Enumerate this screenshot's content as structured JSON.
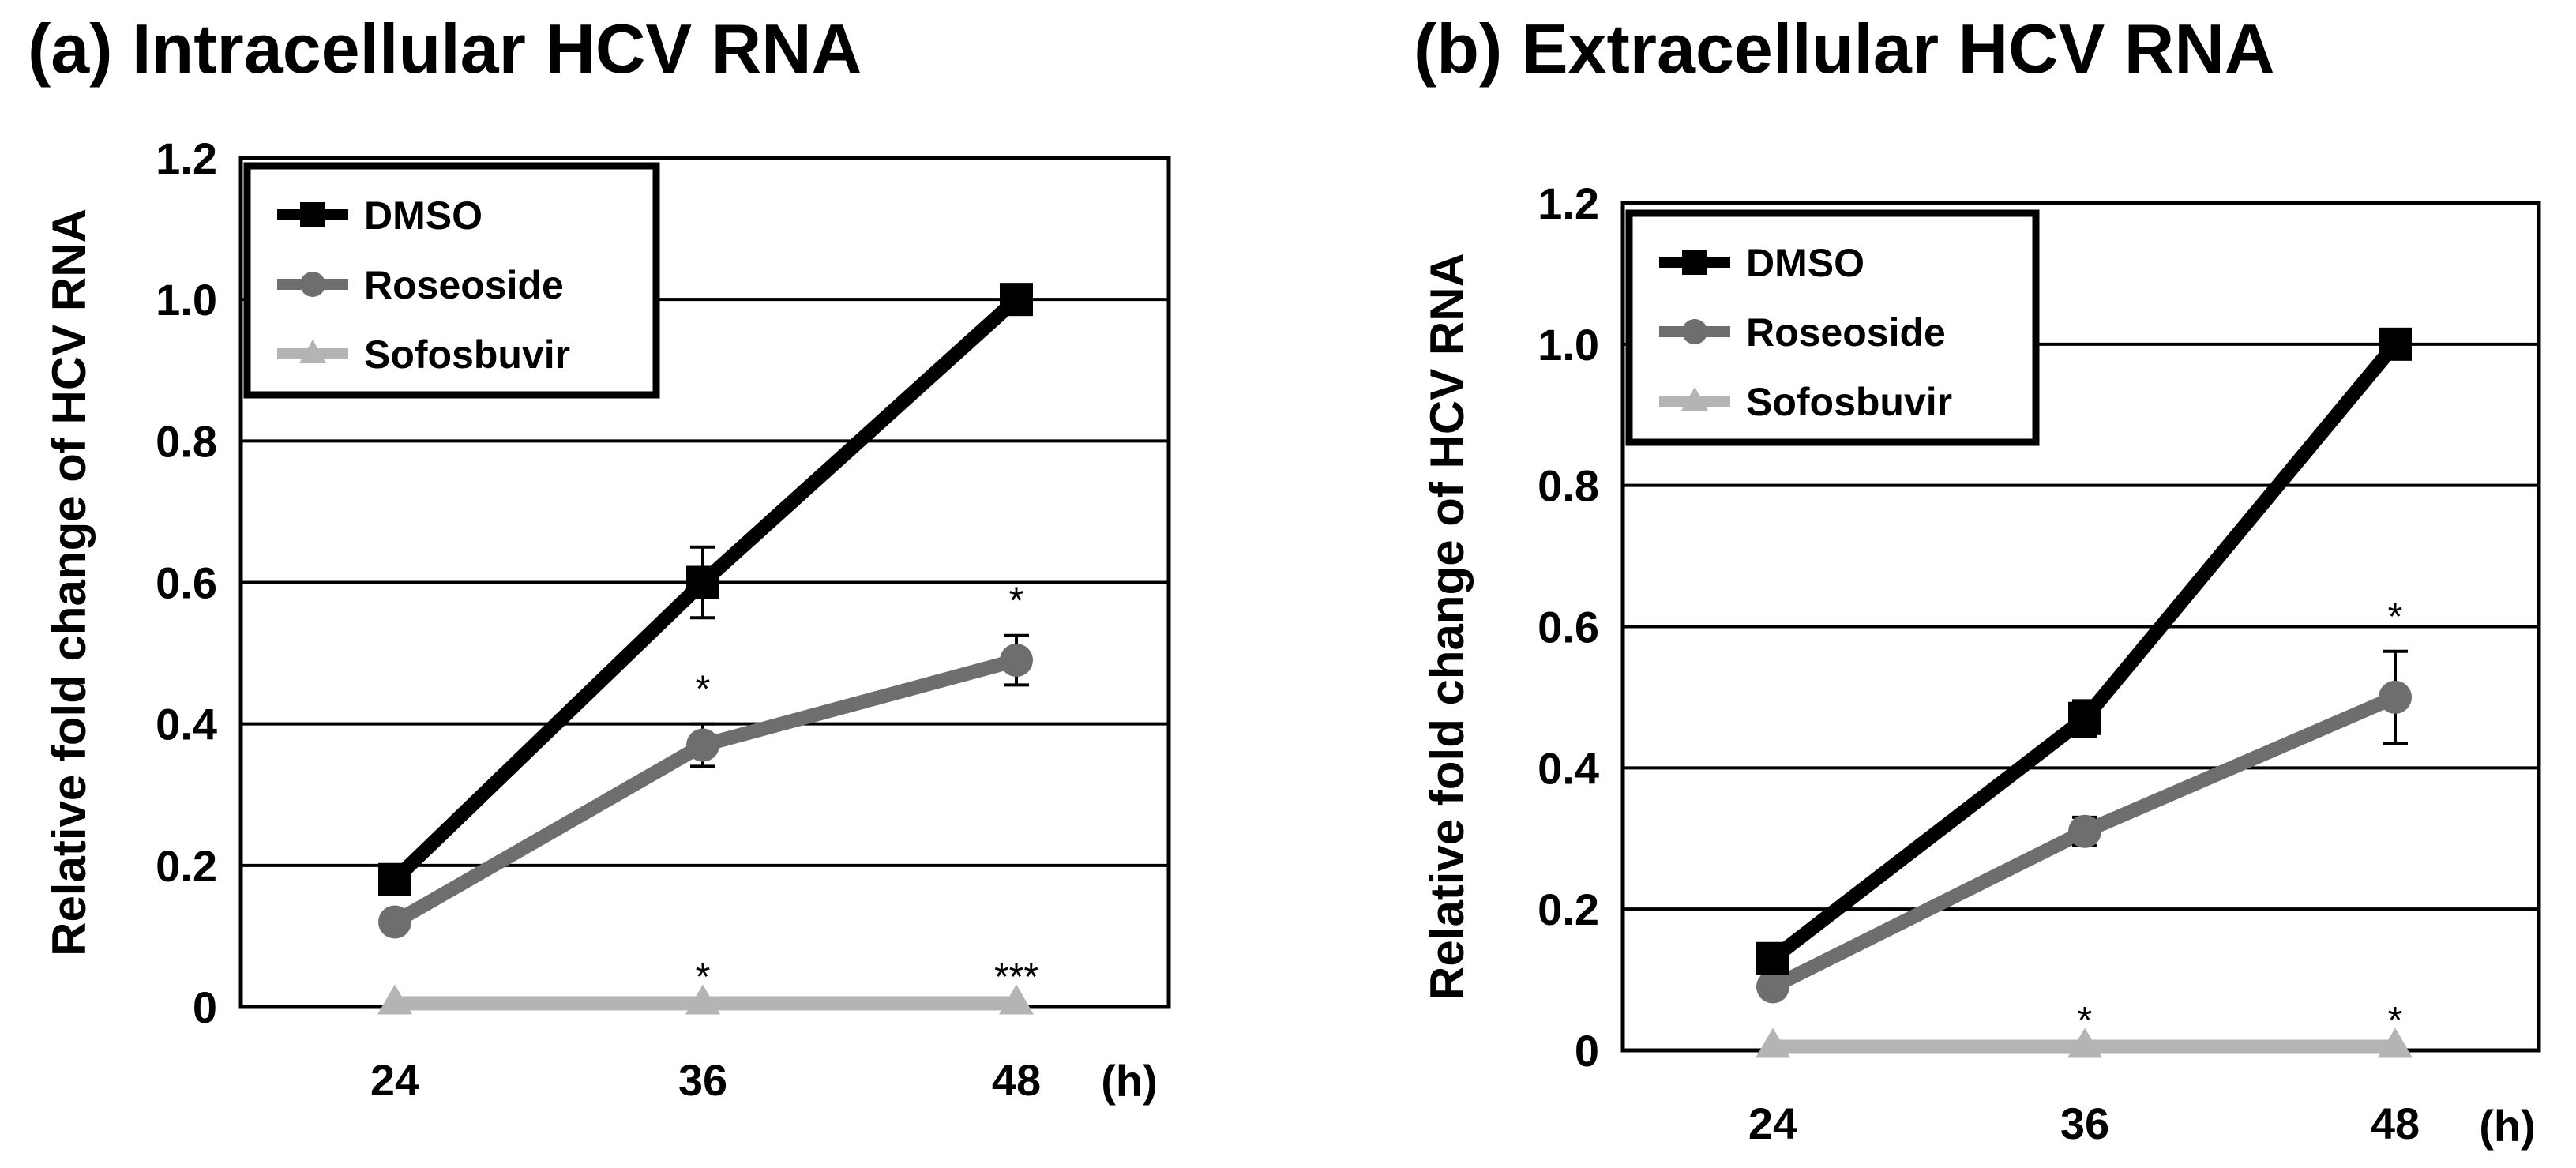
{
  "colors": {
    "dmso": "#000000",
    "roseoside": "#6e6e6e",
    "sofosbuvir": "#b4b4b4",
    "grid": "#000000"
  },
  "chart_data": [
    {
      "type": "line",
      "title": "(a) Intracellular HCV RNA",
      "xlabel": "",
      "x_unit_label": "(h)",
      "ylabel": "Relative fold change of HCV RNA",
      "categories": [
        "24",
        "36",
        "48"
      ],
      "ylim": [
        0,
        1.2
      ],
      "yticks": [
        "0",
        "0.2",
        "0.4",
        "0.6",
        "0.8",
        "1.0",
        "1.2"
      ],
      "grid": true,
      "legend_position": "top-left",
      "series": [
        {
          "name": "DMSO",
          "marker": "square",
          "values": [
            0.18,
            0.6,
            1.0
          ],
          "errors": [
            0,
            0.05,
            0
          ],
          "significance": [
            "",
            "",
            ""
          ]
        },
        {
          "name": "Roseoside",
          "marker": "circle",
          "values": [
            0.12,
            0.37,
            0.49
          ],
          "errors": [
            0,
            0.03,
            0.035
          ],
          "significance": [
            "",
            "*",
            "*"
          ]
        },
        {
          "name": "Sofosbuvir",
          "marker": "triangle",
          "values": [
            0.005,
            0.005,
            0.005
          ],
          "errors": [
            0,
            0,
            0
          ],
          "significance": [
            "",
            "*",
            "***"
          ]
        }
      ]
    },
    {
      "type": "line",
      "title": "(b) Extracellular HCV RNA",
      "xlabel": "",
      "x_unit_label": "(h)",
      "ylabel": "Relative fold change of HCV RNA",
      "categories": [
        "24",
        "36",
        "48"
      ],
      "ylim": [
        0,
        1.2
      ],
      "yticks": [
        "0",
        "0.2",
        "0.4",
        "0.6",
        "0.8",
        "1.0",
        "1.2"
      ],
      "grid": true,
      "legend_position": "top-left",
      "series": [
        {
          "name": "DMSO",
          "marker": "square",
          "values": [
            0.13,
            0.47,
            1.0
          ],
          "errors": [
            0,
            0.025,
            0
          ],
          "significance": [
            "",
            "",
            ""
          ]
        },
        {
          "name": "Roseoside",
          "marker": "circle",
          "values": [
            0.09,
            0.31,
            0.5
          ],
          "errors": [
            0,
            0.02,
            0.065
          ],
          "significance": [
            "",
            "",
            "*"
          ]
        },
        {
          "name": "Sofosbuvir",
          "marker": "triangle",
          "values": [
            0.005,
            0.005,
            0.005
          ],
          "errors": [
            0,
            0,
            0
          ],
          "significance": [
            "",
            "*",
            "*"
          ]
        }
      ]
    }
  ]
}
